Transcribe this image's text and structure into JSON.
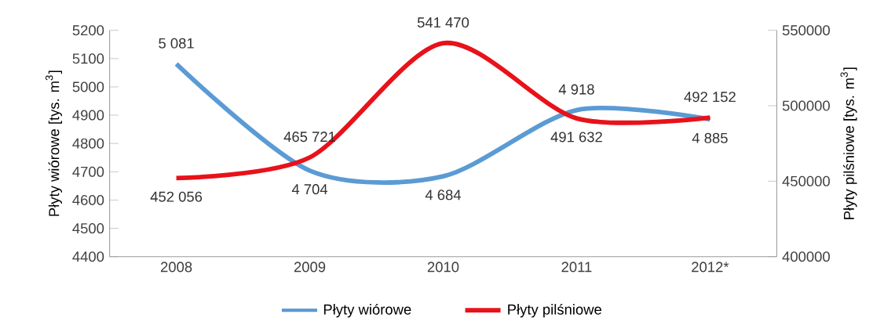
{
  "chart_data": {
    "type": "line",
    "ylabel": "Płyty wiórowe [tys. m$^{3}$]",
    "y2label": "Płyty pilśniowe [tys. m$^{3}$]",
    "categories": [
      "2008",
      "2009",
      "2010",
      "2011",
      "2012*"
    ],
    "series": [
      {
        "name": "Płyty wiórowe",
        "color": "#5b9bd5",
        "values": [
          5081,
          4704,
          4684,
          4918,
          4885
        ],
        "value_labels": [
          "5 081",
          "4 704",
          "4 684",
          "4 918",
          "4 885"
        ]
      },
      {
        "name": "Płyty pilśniowe",
        "color": "#e8121a",
        "axis": "y2",
        "values": [
          452056,
          465721,
          541470,
          491632,
          492152
        ],
        "value_labels": [
          "452 056",
          "465 721",
          "541 470",
          "491 632",
          "492 152"
        ]
      }
    ],
    "ylim": [
      4400,
      5200
    ],
    "yticks": [
      4400,
      4500,
      4600,
      4700,
      4800,
      4900,
      5000,
      5100,
      5200
    ],
    "y2lim": [
      400000,
      550000
    ],
    "y2ticks": [
      400000,
      450000,
      500000,
      550000
    ],
    "legend": "bottom",
    "marker": "none",
    "line_style": "solid",
    "grid": false
  }
}
